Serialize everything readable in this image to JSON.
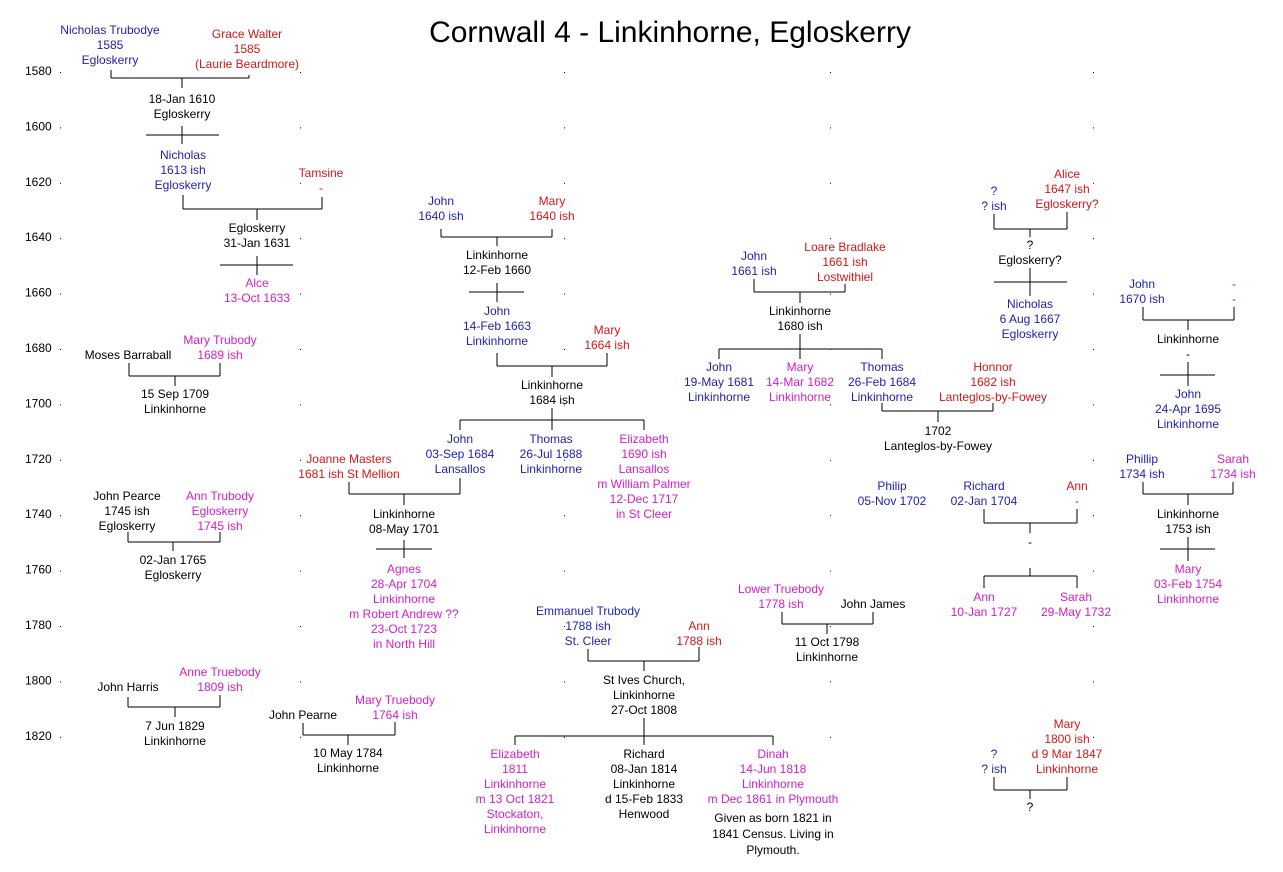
{
  "title": "Cornwall 4 - Linkinhorne, Egloskerry",
  "colors": {
    "male": "#1f1fa8",
    "female_red": "#d01818",
    "female_pink": "#d020c8",
    "event": "#000000"
  },
  "years": [
    "1580",
    "1600",
    "1620",
    "1640",
    "1660",
    "1680",
    "1700",
    "1720",
    "1740",
    "1760",
    "1780",
    "1800",
    "1820"
  ],
  "people": {
    "p01": [
      "Nicholas Trubodye",
      "1585",
      "Egloskerry"
    ],
    "p02": [
      "Grace Walter",
      "1585",
      "(Laurie Beardmore)"
    ],
    "p03": [
      "18-Jan 1610",
      "Egloskerry"
    ],
    "p04": [
      "Nicholas",
      "1613 ish",
      "Egloskerry"
    ],
    "p05": [
      "Tamsine",
      "-"
    ],
    "p06": [
      "Egloskerry",
      "31-Jan 1631"
    ],
    "p07": [
      "Alce",
      "13-Oct 1633"
    ],
    "p08": [
      "Moses Barraball"
    ],
    "p09": [
      "Mary Trubody",
      "1689 ish"
    ],
    "p10": [
      "15 Sep 1709",
      "Linkinhorne"
    ],
    "p11": [
      "Joanne Masters",
      "1681 ish St Mellion"
    ],
    "p12": [
      "John Pearce",
      "1745 ish",
      "Egloskerry"
    ],
    "p13": [
      "Ann Trubody",
      "Egloskerry",
      "1745 ish"
    ],
    "p14": [
      "02-Jan 1765",
      "Egloskerry"
    ],
    "p15": [
      "John Harris"
    ],
    "p16": [
      "Anne Truebody",
      "1809 ish"
    ],
    "p17": [
      "7 Jun 1829",
      "Linkinhorne"
    ],
    "p18": [
      "John Pearne"
    ],
    "p19": [
      "Mary Truebody",
      "1764 ish"
    ],
    "p20": [
      "10 May 1784",
      "Linkinhorne"
    ],
    "p21": [
      "John",
      "1640 ish"
    ],
    "p22": [
      "Mary",
      "1640 ish"
    ],
    "p23": [
      "Linkinhorne",
      "12-Feb 1660"
    ],
    "p24": [
      "John",
      "14-Feb 1663",
      "Linkinhorne"
    ],
    "p25": [
      "Mary",
      "1664 ish"
    ],
    "p26": [
      "Linkinhorne",
      "1684 ish"
    ],
    "p27": [
      "John",
      "03-Sep 1684",
      "Lansallos"
    ],
    "p28": [
      "Thomas",
      "26-Jul 1688",
      "Linkinhorne"
    ],
    "p29": [
      "Elizabeth",
      "1690 ish",
      "Lansallos",
      "m William Palmer",
      "12-Dec 1717",
      "in St Cleer"
    ],
    "p30": [
      "Linkinhorne",
      "08-May 1701"
    ],
    "p31": [
      "Agnes",
      "28-Apr 1704",
      "Linkinhorne",
      "m Robert Andrew ??",
      "23-Oct 1723",
      "in North Hill"
    ],
    "p32": [
      "Emmanuel Trubody",
      "1788 ish",
      "St. Cleer"
    ],
    "p33": [
      "Ann",
      "1788 ish"
    ],
    "p34": [
      "St Ives Church,",
      "Linkinhorne",
      "27-Oct 1808"
    ],
    "p35": [
      "Elizabeth",
      "1811",
      "Linkinhorne",
      "m 13 Oct 1821",
      "Stockaton,",
      "Linkinhorne"
    ],
    "p36": [
      "Richard",
      "08-Jan 1814",
      "Linkinhorne",
      "d 15-Feb 1833",
      "Henwood"
    ],
    "p37": [
      "Dinah",
      "14-Jun 1818",
      "Linkinhorne",
      "m Dec 1861 in Plymouth"
    ],
    "p38": [
      "Given as born 1821 in",
      "1841 Census. Living in",
      "Plymouth."
    ],
    "p39": [
      "John",
      "1661 ish"
    ],
    "p40": [
      "Loare Bradlake",
      "1661 ish",
      "Lostwithiel"
    ],
    "p41": [
      "Linkinhorne",
      "1680 ish"
    ],
    "p42": [
      "John",
      "19-May 1681",
      "Linkinhorne"
    ],
    "p43": [
      "Mary",
      "14-Mar 1682",
      "Linkinhorne"
    ],
    "p44": [
      "Thomas",
      "26-Feb 1684",
      "Linkinhorne"
    ],
    "p45": [
      "Honnor",
      "1682 ish",
      "Lanteglos-by-Fowey"
    ],
    "p46": [
      "1702",
      "Lanteglos-by-Fowey"
    ],
    "p47": [
      "Philip",
      "05-Nov 1702"
    ],
    "p48": [
      "Richard",
      "02-Jan 1704"
    ],
    "p49": [
      "Ann",
      "-"
    ],
    "p50": [
      "-"
    ],
    "p51": [
      "Ann",
      "10-Jan 1727"
    ],
    "p52": [
      "Sarah",
      "29-May 1732"
    ],
    "p53": [
      "Lower Truebody",
      "1778 ish"
    ],
    "p54": [
      "John James"
    ],
    "p55": [
      "11 Oct 1798",
      "Linkinhorne"
    ],
    "p56": [
      "?",
      "? ish"
    ],
    "p57": [
      "Alice",
      "1647 ish",
      "Egloskerry?"
    ],
    "p58": [
      "?",
      "Egloskerry?"
    ],
    "p59": [
      "Nicholas",
      "6 Aug 1667",
      "Egloskerry"
    ],
    "p60": [
      "John",
      "1670 ish"
    ],
    "p61": [
      "-",
      "-"
    ],
    "p62": [
      "Linkinhorne",
      "-"
    ],
    "p63": [
      "John",
      "24-Apr 1695",
      "Linkinhorne"
    ],
    "p64": [
      "Phillip",
      "1734 ish"
    ],
    "p65": [
      "Sarah",
      "1734 ish"
    ],
    "p66": [
      "Linkinhorne",
      "1753 ish"
    ],
    "p67": [
      "Mary",
      "03-Feb 1754",
      "Linkinhorne"
    ],
    "p68": [
      "Mary",
      "1800 ish",
      "d 9 Mar 1847",
      "Linkinhorne"
    ],
    "p69": [
      "?",
      "? ish"
    ],
    "p70": [
      "?"
    ]
  }
}
